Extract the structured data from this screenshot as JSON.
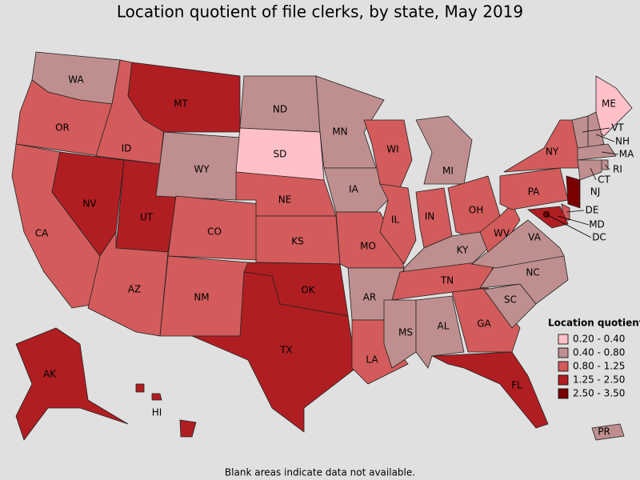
{
  "title": "Location quotient of file clerks, by state, May 2019",
  "footnote": "Blank areas indicate data not available.",
  "legend": {
    "title": "Location quotient",
    "items": [
      {
        "label": "0.20 - 0.40",
        "color": "#ffc0c8"
      },
      {
        "label": "0.40 - 0.80",
        "color": "#bf8f8f"
      },
      {
        "label": "0.80 - 1.25",
        "color": "#d35b5b"
      },
      {
        "label": "1.25 - 2.50",
        "color": "#b01e22"
      },
      {
        "label": "2.50 - 3.50",
        "color": "#7a0000"
      }
    ]
  },
  "states": [
    {
      "abbr": "WA",
      "color": "#bf8f8f"
    },
    {
      "abbr": "OR",
      "color": "#d35b5b"
    },
    {
      "abbr": "CA",
      "color": "#d35b5b"
    },
    {
      "abbr": "ID",
      "color": "#d35b5b"
    },
    {
      "abbr": "NV",
      "color": "#b01e22"
    },
    {
      "abbr": "UT",
      "color": "#b01e22"
    },
    {
      "abbr": "AZ",
      "color": "#d35b5b"
    },
    {
      "abbr": "MT",
      "color": "#b01e22"
    },
    {
      "abbr": "WY",
      "color": "#bf8f8f"
    },
    {
      "abbr": "CO",
      "color": "#d35b5b"
    },
    {
      "abbr": "NM",
      "color": "#d35b5b"
    },
    {
      "abbr": "ND",
      "color": "#bf8f8f"
    },
    {
      "abbr": "SD",
      "color": "#ffc0c8"
    },
    {
      "abbr": "NE",
      "color": "#d35b5b"
    },
    {
      "abbr": "KS",
      "color": "#d35b5b"
    },
    {
      "abbr": "OK",
      "color": "#b01e22"
    },
    {
      "abbr": "TX",
      "color": "#b01e22"
    },
    {
      "abbr": "MN",
      "color": "#bf8f8f"
    },
    {
      "abbr": "IA",
      "color": "#bf8f8f"
    },
    {
      "abbr": "MO",
      "color": "#d35b5b"
    },
    {
      "abbr": "AR",
      "color": "#bf8f8f"
    },
    {
      "abbr": "LA",
      "color": "#d35b5b"
    },
    {
      "abbr": "WI",
      "color": "#d35b5b"
    },
    {
      "abbr": "IL",
      "color": "#d35b5b"
    },
    {
      "abbr": "MI",
      "color": "#bf8f8f"
    },
    {
      "abbr": "IN",
      "color": "#d35b5b"
    },
    {
      "abbr": "OH",
      "color": "#d35b5b"
    },
    {
      "abbr": "KY",
      "color": "#bf8f8f"
    },
    {
      "abbr": "TN",
      "color": "#d35b5b"
    },
    {
      "abbr": "MS",
      "color": "#bf8f8f"
    },
    {
      "abbr": "AL",
      "color": "#bf8f8f"
    },
    {
      "abbr": "GA",
      "color": "#d35b5b"
    },
    {
      "abbr": "FL",
      "color": "#b01e22"
    },
    {
      "abbr": "SC",
      "color": "#bf8f8f"
    },
    {
      "abbr": "NC",
      "color": "#bf8f8f"
    },
    {
      "abbr": "VA",
      "color": "#bf8f8f"
    },
    {
      "abbr": "WV",
      "color": "#d35b5b"
    },
    {
      "abbr": "PA",
      "color": "#d35b5b"
    },
    {
      "abbr": "NY",
      "color": "#d35b5b"
    },
    {
      "abbr": "ME",
      "color": "#ffc0c8"
    },
    {
      "abbr": "VT",
      "color": "#bf8f8f"
    },
    {
      "abbr": "NH",
      "color": "#bf8f8f"
    },
    {
      "abbr": "MA",
      "color": "#bf8f8f"
    },
    {
      "abbr": "RI",
      "color": "#bf8f8f"
    },
    {
      "abbr": "CT",
      "color": "#bf8f8f"
    },
    {
      "abbr": "NJ",
      "color": "#7a0000"
    },
    {
      "abbr": "DE",
      "color": "#d35b5b"
    },
    {
      "abbr": "MD",
      "color": "#b01e22"
    },
    {
      "abbr": "DC",
      "color": "#7a0000"
    },
    {
      "abbr": "AK",
      "color": "#b01e22"
    },
    {
      "abbr": "HI",
      "color": "#b01e22"
    },
    {
      "abbr": "PR",
      "color": "#bf8f8f"
    }
  ]
}
